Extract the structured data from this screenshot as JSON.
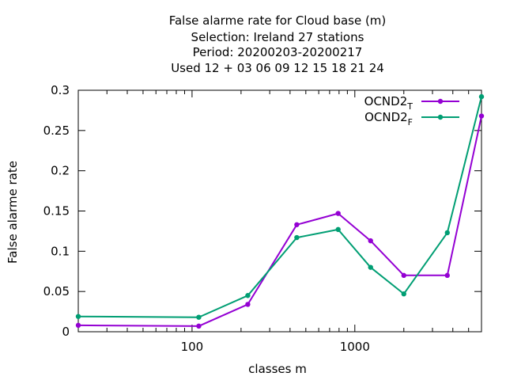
{
  "chart_data": {
    "type": "line",
    "title_lines": [
      "False alarme rate  for Cloud base (m)",
      "Selection: Ireland     27 stations",
      "Period: 20200203-20200217",
      "Used  12 + 03 06 09 12 15 18 21 24"
    ],
    "xlabel": "classes m",
    "ylabel": "False alarme rate",
    "x_scale": "log",
    "xlim": [
      20,
      6000
    ],
    "ylim": [
      0,
      0.3
    ],
    "x_ticks": [
      100,
      1000
    ],
    "x_tick_labels": [
      "100",
      "1000"
    ],
    "y_ticks": [
      0,
      0.05,
      0.1,
      0.15,
      0.2,
      0.25,
      0.3
    ],
    "y_tick_labels": [
      "0",
      "0.05",
      "0.1",
      "0.15",
      "0.2",
      "0.25",
      "0.3"
    ],
    "grid": false,
    "legend_position": "top-right",
    "series": [
      {
        "name": "OCND2",
        "name_subscript": "T",
        "color": "#9400d3",
        "x": [
          20,
          110,
          220,
          440,
          790,
          1250,
          2000,
          3700,
          6000
        ],
        "y": [
          0.008,
          0.007,
          0.034,
          0.133,
          0.147,
          0.113,
          0.07,
          0.07,
          0.268
        ]
      },
      {
        "name": "OCND2",
        "name_subscript": "F",
        "color": "#009e73",
        "x": [
          20,
          110,
          220,
          440,
          790,
          1250,
          2000,
          3700,
          6000
        ],
        "y": [
          0.019,
          0.018,
          0.045,
          0.117,
          0.127,
          0.08,
          0.047,
          0.123,
          0.292
        ]
      }
    ]
  }
}
